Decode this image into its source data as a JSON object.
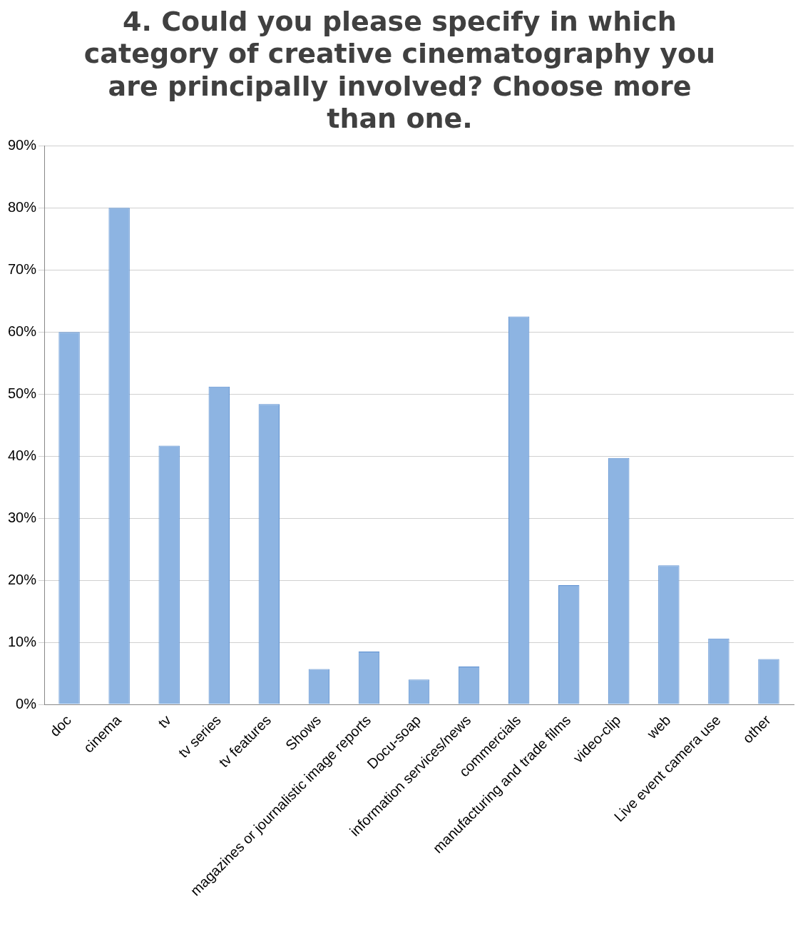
{
  "chart_data": {
    "type": "bar",
    "title": "4. Could you please specify in which category of creative cinematography you are principally involved? Choose more than one.",
    "categories": [
      "doc",
      "cinema",
      "tv",
      "tv series",
      "tv features",
      "Shows",
      "magazines or journalistic image reports",
      "Docu-soap",
      "information services/news",
      "commercials",
      "manufacturing and trade films",
      "video-clip",
      "web",
      "Live event camera use",
      "other"
    ],
    "values": [
      60,
      80,
      41.7,
      51.2,
      48.4,
      5.7,
      8.5,
      4,
      6.1,
      62.5,
      19.2,
      39.7,
      22.4,
      10.6,
      7.3
    ],
    "color": "#8db4e2",
    "ylim": [
      0,
      90
    ],
    "yticks": [
      {
        "value": 0,
        "label": "0%"
      },
      {
        "value": 10,
        "label": "10%"
      },
      {
        "value": 20,
        "label": "20%"
      },
      {
        "value": 30,
        "label": "30%"
      },
      {
        "value": 40,
        "label": "40%"
      },
      {
        "value": 50,
        "label": "50%"
      },
      {
        "value": 60,
        "label": "60%"
      },
      {
        "value": 70,
        "label": "70%"
      },
      {
        "value": 80,
        "label": "80%"
      },
      {
        "value": 90,
        "label": "90%"
      }
    ],
    "grid": "y",
    "legend": false
  }
}
